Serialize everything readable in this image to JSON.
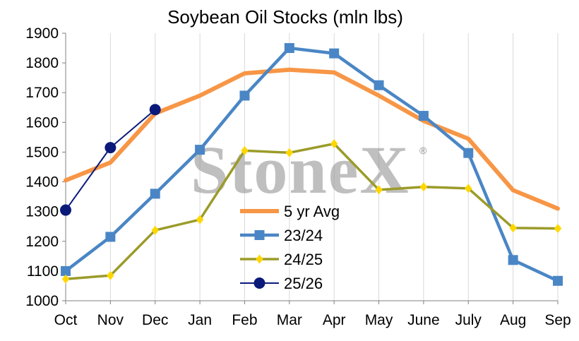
{
  "chart_data": {
    "type": "line",
    "title": "Soybean Oil Stocks (mln lbs)",
    "watermark": "StoneX",
    "watermark_mark": "®",
    "categories": [
      "Oct",
      "Nov",
      "Dec",
      "Jan",
      "Feb",
      "Mar",
      "Apr",
      "May",
      "June",
      "July",
      "Aug",
      "Sep"
    ],
    "ylim": [
      1000,
      1900
    ],
    "yticks": [
      1000,
      1100,
      1200,
      1300,
      1400,
      1500,
      1600,
      1700,
      1800,
      1900
    ],
    "grid": "vertical",
    "legend_position": "center-bottom",
    "series": [
      {
        "name": "5 yr Avg",
        "color": "#f79646",
        "marker": "none",
        "values": [
          1405,
          1465,
          1630,
          1690,
          1765,
          1777,
          1768,
          1690,
          1605,
          1545,
          1372,
          1310
        ]
      },
      {
        "name": "23/24",
        "color": "#4a86c5",
        "marker": "square",
        "values": [
          1100,
          1215,
          1360,
          1508,
          1690,
          1850,
          1832,
          1725,
          1622,
          1497,
          1137,
          1067
        ]
      },
      {
        "name": "24/25",
        "color": "#9b9b2a",
        "marker_color": "#ffd700",
        "marker": "diamond",
        "values": [
          1073,
          1085,
          1237,
          1273,
          1505,
          1498,
          1528,
          1373,
          1383,
          1378,
          1245,
          1243
        ]
      },
      {
        "name": "25/26",
        "color": "#0b1a7a",
        "marker": "circle",
        "values": [
          1305,
          1515,
          1643,
          null,
          null,
          null,
          null,
          null,
          null,
          null,
          null,
          null
        ]
      }
    ]
  }
}
